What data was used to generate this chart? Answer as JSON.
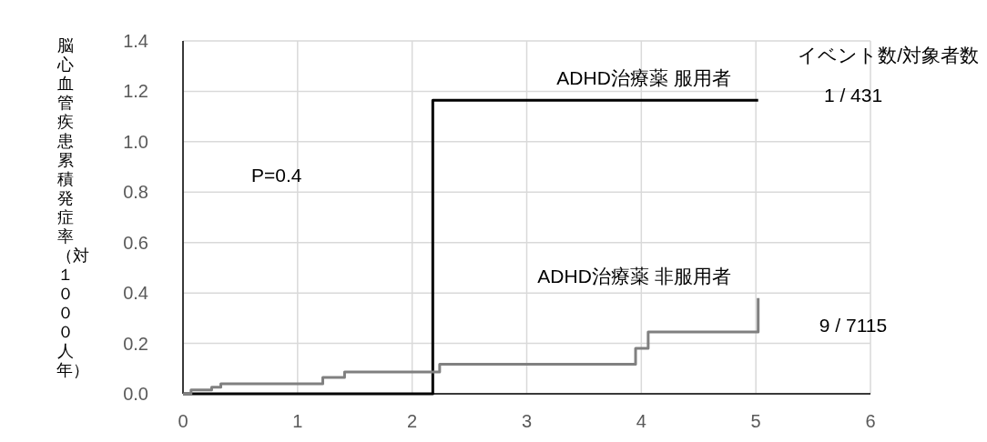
{
  "chart_data": {
    "type": "step",
    "ylabel": "脳心血管疾患累積発症率（対１０００人年）",
    "xlim": [
      0,
      6
    ],
    "xticks": [
      0,
      1,
      2,
      3,
      4,
      5,
      6
    ],
    "ylim": [
      0,
      1.4
    ],
    "yticks": [
      {
        "value": 0,
        "label": "0.0"
      },
      {
        "value": 0.2,
        "label": "0.2"
      },
      {
        "value": 0.4,
        "label": "0.4"
      },
      {
        "value": 0.6,
        "label": "0.6"
      },
      {
        "value": 0.8,
        "label": "0.8"
      },
      {
        "value": 1.0,
        "label": "1.0"
      },
      {
        "value": 1.2,
        "label": "1.2"
      },
      {
        "value": 1.4,
        "label": "1.4"
      }
    ],
    "grid": true,
    "legend": false,
    "series": [
      {
        "name": "ADHD治療薬 服用者",
        "color": "#000000",
        "x": [
          0,
          2.18,
          5.02
        ],
        "values": [
          0,
          1.165,
          1.165
        ]
      },
      {
        "name": "ADHD治療薬 非服用者",
        "color": "#808080",
        "x": [
          0,
          0.07,
          0.25,
          0.33,
          1.22,
          1.41,
          2.24,
          3.95,
          4.06,
          5.02
        ],
        "values": [
          0,
          0.015,
          0.026,
          0.04,
          0.065,
          0.087,
          0.117,
          0.18,
          0.245,
          0.38
        ]
      }
    ],
    "annotations": [
      "イベント数/対象者数",
      "1 / 431",
      "9 / 7115",
      "P=0.4"
    ]
  }
}
